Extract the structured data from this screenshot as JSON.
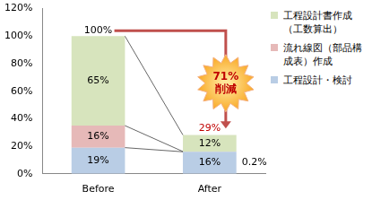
{
  "chart_data": {
    "type": "bar",
    "stacked": true,
    "categories": [
      "Before",
      "After"
    ],
    "series": [
      {
        "name": "工程設計・検討",
        "color": "#b9cde5",
        "values": [
          19,
          16
        ],
        "value_labels": [
          "19%",
          "16%"
        ]
      },
      {
        "name": "流れ線図（部品構成表）作成",
        "color": "#e6b9b8",
        "values": [
          16,
          0.2
        ],
        "value_labels": [
          "16%",
          "0.2%"
        ]
      },
      {
        "name": "工程設計書作成（工数算出）",
        "color": "#d7e4bd",
        "values": [
          65,
          12
        ],
        "value_labels": [
          "65%",
          "12%"
        ]
      }
    ],
    "ylim": [
      0,
      120
    ],
    "yticks": [
      {
        "value": 0,
        "label": "0%"
      },
      {
        "value": 20,
        "label": "20%"
      },
      {
        "value": 40,
        "label": "40%"
      },
      {
        "value": 60,
        "label": "60%"
      },
      {
        "value": 80,
        "label": "80%"
      },
      {
        "value": 100,
        "label": "100%"
      },
      {
        "value": 120,
        "label": "120%"
      }
    ],
    "grid": false,
    "legend": "right",
    "data_labels": true,
    "totals": {
      "values": [
        100,
        29
      ],
      "value_labels": [
        "100%",
        "29%"
      ],
      "colors": [
        "#000000",
        "#c00000"
      ]
    },
    "annotations": [
      {
        "text": [
          "71%",
          "削減"
        ]
      }
    ]
  }
}
